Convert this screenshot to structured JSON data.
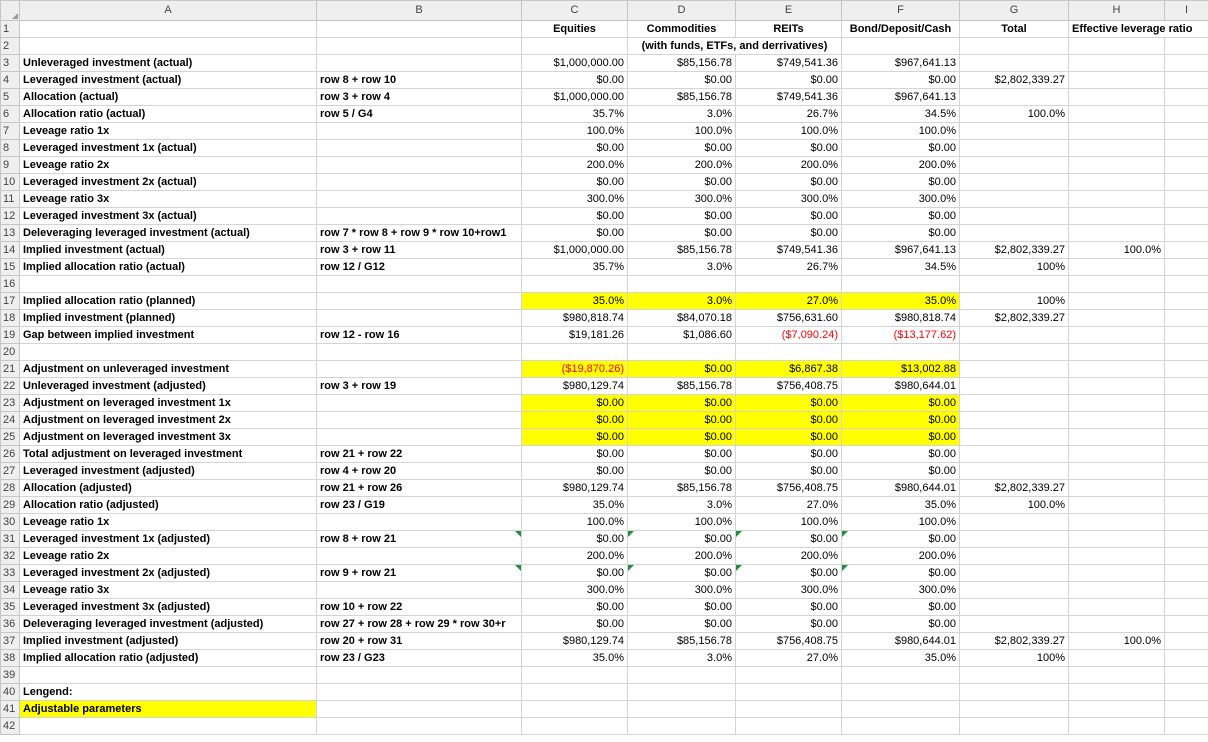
{
  "columns": [
    "A",
    "B",
    "C",
    "D",
    "E",
    "F",
    "G",
    "H",
    "I"
  ],
  "header_row": {
    "C": "Equities",
    "D": "Commodities",
    "E": "REITs",
    "F": "Bond/Deposit/Cash",
    "G": "Total",
    "H": "Effective leverage ratio",
    "D2": "(with funds, ETFs, and derrivatives)"
  },
  "rows": [
    {
      "n": "3",
      "a": "Unleveraged investment (actual)",
      "b": "",
      "c": "$1,000,000.00",
      "d": "$85,156.78",
      "e": "$749,541.36",
      "f": "$967,641.13",
      "g": "",
      "h": ""
    },
    {
      "n": "4",
      "a": "Leveraged investment (actual)",
      "b": "row 8 + row 10",
      "c": "$0.00",
      "d": "$0.00",
      "e": "$0.00",
      "f": "$0.00",
      "g": "$2,802,339.27",
      "h": ""
    },
    {
      "n": "5",
      "a": "Allocation (actual)",
      "b": "row 3 + row 4",
      "c": "$1,000,000.00",
      "d": "$85,156.78",
      "e": "$749,541.36",
      "f": "$967,641.13",
      "g": "",
      "h": ""
    },
    {
      "n": "6",
      "a": "Allocation ratio (actual)",
      "b": "row 5 / G4",
      "c": "35.7%",
      "d": "3.0%",
      "e": "26.7%",
      "f": "34.5%",
      "g": "100.0%",
      "h": ""
    },
    {
      "n": "7",
      "a": "Leveage ratio 1x",
      "b": "",
      "c": "100.0%",
      "d": "100.0%",
      "e": "100.0%",
      "f": "100.0%",
      "g": "",
      "h": ""
    },
    {
      "n": "8",
      "a": "Leveraged investment 1x (actual)",
      "b": "",
      "c": "$0.00",
      "d": "$0.00",
      "e": "$0.00",
      "f": "$0.00",
      "g": "",
      "h": ""
    },
    {
      "n": "9",
      "a": "Leveage ratio 2x",
      "b": "",
      "c": "200.0%",
      "d": "200.0%",
      "e": "200.0%",
      "f": "200.0%",
      "g": "",
      "h": ""
    },
    {
      "n": "10",
      "a": "Leveraged investment 2x (actual)",
      "b": "",
      "c": "$0.00",
      "d": "$0.00",
      "e": "$0.00",
      "f": "$0.00",
      "g": "",
      "h": ""
    },
    {
      "n": "11",
      "a": "Leveage ratio 3x",
      "b": "",
      "c": "300.0%",
      "d": "300.0%",
      "e": "300.0%",
      "f": "300.0%",
      "g": "",
      "h": ""
    },
    {
      "n": "12",
      "a": "Leveraged investment 3x (actual)",
      "b": "",
      "c": "$0.00",
      "d": "$0.00",
      "e": "$0.00",
      "f": "$0.00",
      "g": "",
      "h": ""
    },
    {
      "n": "13",
      "a": "Deleveraging leveraged investment (actual)",
      "b": "row 7 * row 8 + row 9 * row 10+row1",
      "c": "$0.00",
      "d": "$0.00",
      "e": "$0.00",
      "f": "$0.00",
      "g": "",
      "h": ""
    },
    {
      "n": "14",
      "a": "Implied investment (actual)",
      "b": "row 3 + row 11",
      "c": "$1,000,000.00",
      "d": "$85,156.78",
      "e": "$749,541.36",
      "f": "$967,641.13",
      "g": "$2,802,339.27",
      "h": "100.0%"
    },
    {
      "n": "15",
      "a": "Implied allocation ratio (actual)",
      "b": "row 12 / G12",
      "c": "35.7%",
      "d": "3.0%",
      "e": "26.7%",
      "f": "34.5%",
      "g": "100%",
      "h": ""
    },
    {
      "n": "16",
      "a": "",
      "b": "",
      "c": "",
      "d": "",
      "e": "",
      "f": "",
      "g": "",
      "h": ""
    },
    {
      "n": "17",
      "a": "Implied allocation ratio (planned)",
      "b": "",
      "c": "35.0%",
      "d": "3.0%",
      "e": "27.0%",
      "f": "35.0%",
      "g": "100%",
      "h": "",
      "hl": true
    },
    {
      "n": "18",
      "a": "Implied investment (planned)",
      "b": "",
      "c": "$980,818.74",
      "d": "$84,070.18",
      "e": "$756,631.60",
      "f": "$980,818.74",
      "g": "$2,802,339.27",
      "h": ""
    },
    {
      "n": "19",
      "a": "Gap between implied investment",
      "b": "row 12 - row 16",
      "c": "$19,181.26",
      "d": "$1,086.60",
      "e": "($7,090.24)",
      "f": "($13,177.62)",
      "g": "",
      "h": "",
      "neg": [
        "e",
        "f"
      ]
    },
    {
      "n": "20",
      "a": "",
      "b": "",
      "c": "",
      "d": "",
      "e": "",
      "f": "",
      "g": "",
      "h": ""
    },
    {
      "n": "21",
      "a": "Adjustment on unleveraged investment",
      "b": "",
      "c": "($19,870.26)",
      "d": "$0.00",
      "e": "$6,867.38",
      "f": "$13,002.88",
      "g": "",
      "h": "",
      "hl": true,
      "neg": [
        "c"
      ]
    },
    {
      "n": "22",
      "a": "Unleveraged investment (adjusted)",
      "b": "row 3 + row 19",
      "c": "$980,129.74",
      "d": "$85,156.78",
      "e": "$756,408.75",
      "f": "$980,644.01",
      "g": "",
      "h": ""
    },
    {
      "n": "23",
      "a": "Adjustment on leveraged investment 1x",
      "b": "",
      "c": "$0.00",
      "d": "$0.00",
      "e": "$0.00",
      "f": "$0.00",
      "g": "",
      "h": "",
      "hl": true
    },
    {
      "n": "24",
      "a": "Adjustment on leveraged investment 2x",
      "b": "",
      "c": "$0.00",
      "d": "$0.00",
      "e": "$0.00",
      "f": "$0.00",
      "g": "",
      "h": "",
      "hl": true
    },
    {
      "n": "25",
      "a": "Adjustment on leveraged investment 3x",
      "b": "",
      "c": "$0.00",
      "d": "$0.00",
      "e": "$0.00",
      "f": "$0.00",
      "g": "",
      "h": "",
      "hl": true
    },
    {
      "n": "26",
      "a": "Total adjustment on leveraged investment",
      "b": "row 21 + row 22",
      "c": "$0.00",
      "d": "$0.00",
      "e": "$0.00",
      "f": "$0.00",
      "g": "",
      "h": ""
    },
    {
      "n": "27",
      "a": "Leveraged investment (adjusted)",
      "b": "row 4 + row 20",
      "c": "$0.00",
      "d": "$0.00",
      "e": "$0.00",
      "f": "$0.00",
      "g": "",
      "h": ""
    },
    {
      "n": "28",
      "a": "Allocation (adjusted)",
      "b": "row 21 + row 26",
      "c": "$980,129.74",
      "d": "$85,156.78",
      "e": "$756,408.75",
      "f": "$980,644.01",
      "g": "$2,802,339.27",
      "h": ""
    },
    {
      "n": "29",
      "a": "Allocation ratio (adjusted)",
      "b": "row 23 / G19",
      "c": "35.0%",
      "d": "3.0%",
      "e": "27.0%",
      "f": "35.0%",
      "g": "100.0%",
      "h": ""
    },
    {
      "n": "30",
      "a": "Leveage ratio 1x",
      "b": "",
      "c": "100.0%",
      "d": "100.0%",
      "e": "100.0%",
      "f": "100.0%",
      "g": "",
      "h": ""
    },
    {
      "n": "31",
      "a": "Leveraged investment 1x (adjusted)",
      "b": "row 8 + row 21",
      "c": "$0.00",
      "d": "$0.00",
      "e": "$0.00",
      "f": "$0.00",
      "g": "",
      "h": "",
      "tri": true
    },
    {
      "n": "32",
      "a": "Leveage ratio 2x",
      "b": "",
      "c": "200.0%",
      "d": "200.0%",
      "e": "200.0%",
      "f": "200.0%",
      "g": "",
      "h": ""
    },
    {
      "n": "33",
      "a": "Leveraged investment 2x (adjusted)",
      "b": "row 9 + row 21",
      "c": "$0.00",
      "d": "$0.00",
      "e": "$0.00",
      "f": "$0.00",
      "g": "",
      "h": "",
      "tri": true
    },
    {
      "n": "34",
      "a": "Leveage ratio 3x",
      "b": "",
      "c": "300.0%",
      "d": "300.0%",
      "e": "300.0%",
      "f": "300.0%",
      "g": "",
      "h": ""
    },
    {
      "n": "35",
      "a": "Leveraged investment 3x (adjusted)",
      "b": "row 10 + row 22",
      "c": "$0.00",
      "d": "$0.00",
      "e": "$0.00",
      "f": "$0.00",
      "g": "",
      "h": ""
    },
    {
      "n": "36",
      "a": "Deleveraging leveraged investment (adjusted)",
      "b": "row 27 + row 28 + row 29 * row 30+r",
      "c": "$0.00",
      "d": "$0.00",
      "e": "$0.00",
      "f": "$0.00",
      "g": "",
      "h": ""
    },
    {
      "n": "37",
      "a": "Implied investment (adjusted)",
      "b": "row 20 + row 31",
      "c": "$980,129.74",
      "d": "$85,156.78",
      "e": "$756,408.75",
      "f": "$980,644.01",
      "g": "$2,802,339.27",
      "h": "100.0%"
    },
    {
      "n": "38",
      "a": "Implied allocation ratio (adjusted)",
      "b": "row 23 / G23",
      "c": "35.0%",
      "d": "3.0%",
      "e": "27.0%",
      "f": "35.0%",
      "g": "100%",
      "h": ""
    },
    {
      "n": "39",
      "a": "",
      "b": "",
      "c": "",
      "d": "",
      "e": "",
      "f": "",
      "g": "",
      "h": ""
    },
    {
      "n": "40",
      "a": "Lengend:",
      "b": "",
      "c": "",
      "d": "",
      "e": "",
      "f": "",
      "g": "",
      "h": ""
    },
    {
      "n": "41",
      "a": "Adjustable parameters",
      "b": "",
      "c": "",
      "d": "",
      "e": "",
      "f": "",
      "g": "",
      "h": "",
      "hla": true
    },
    {
      "n": "42",
      "a": "",
      "b": "",
      "c": "",
      "d": "",
      "e": "",
      "f": "",
      "g": "",
      "h": ""
    }
  ],
  "row_numbers_top": [
    "1",
    "2"
  ],
  "colors": {
    "highlight": "#ffff00",
    "negative": "#ff0000",
    "indicator": "#1e8f3a",
    "header_bg": "#efefef"
  }
}
